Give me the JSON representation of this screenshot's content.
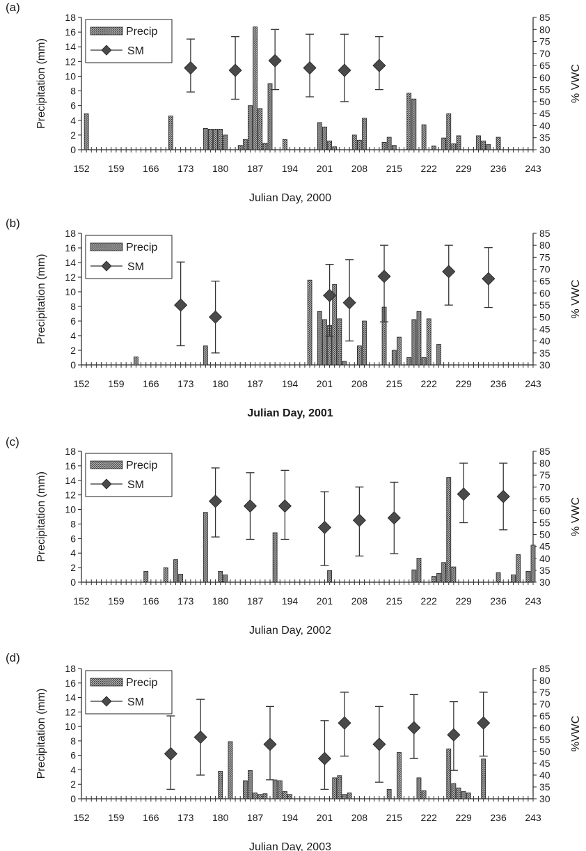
{
  "chart_data": [
    {
      "type": "bar",
      "panel": "(a)",
      "xlabel": "Julian Day, 2000",
      "ylabel": "Precipitation (mm)",
      "y2label": "% VWC",
      "xlim": [
        152,
        243
      ],
      "ylim": [
        0,
        18
      ],
      "y2lim": [
        30,
        85
      ],
      "xticks": [
        "152",
        "159",
        "166",
        "173",
        "180",
        "187",
        "194",
        "201",
        "208",
        "215",
        "222",
        "229",
        "236",
        "243"
      ],
      "yticks": [
        "0",
        "2",
        "4",
        "6",
        "8",
        "10",
        "12",
        "14",
        "16",
        "18"
      ],
      "y2ticks": [
        "30",
        "35",
        "40",
        "45",
        "50",
        "55",
        "60",
        "65",
        "70",
        "75",
        "80",
        "85"
      ],
      "legend": [
        "Precip",
        "SM"
      ],
      "legend_position": "top-left",
      "series": [
        {
          "name": "Precip",
          "type": "bar",
          "axis": "left",
          "x": [
            153,
            170,
            177,
            178,
            179,
            180,
            181,
            184,
            185,
            186,
            187,
            188,
            189,
            190,
            193,
            200,
            201,
            202,
            203,
            207,
            208,
            209,
            213,
            214,
            215,
            218,
            219,
            221,
            223,
            225,
            226,
            227,
            228,
            232,
            233,
            234,
            236
          ],
          "y": [
            4.9,
            4.6,
            2.9,
            2.8,
            2.8,
            2.8,
            2.0,
            0.6,
            1.4,
            6.0,
            16.7,
            5.6,
            0.9,
            9.0,
            1.4,
            3.7,
            3.1,
            1.2,
            0.4,
            2.0,
            1.3,
            4.3,
            1.0,
            1.7,
            0.6,
            7.7,
            6.9,
            3.4,
            0.5,
            1.6,
            4.9,
            0.8,
            1.9,
            1.9,
            1.2,
            0.7,
            1.7
          ]
        },
        {
          "name": "SM",
          "type": "scatter",
          "axis": "right",
          "x": [
            174,
            183,
            191,
            198,
            205,
            212
          ],
          "y": [
            64,
            63,
            67,
            64,
            63,
            65
          ],
          "error": [
            [
              54,
              76
            ],
            [
              51,
              77
            ],
            [
              55,
              80
            ],
            [
              52,
              78
            ],
            [
              50,
              78
            ],
            [
              55,
              77
            ]
          ]
        }
      ]
    },
    {
      "type": "bar",
      "panel": "(b)",
      "xlabel": "Julian Day, 2001",
      "ylabel": "Precipitation (mm)",
      "y2label": "% VWC",
      "xlim": [
        152,
        243
      ],
      "ylim": [
        0,
        18
      ],
      "y2lim": [
        30,
        85
      ],
      "xticks": [
        "152",
        "159",
        "166",
        "173",
        "180",
        "187",
        "194",
        "201",
        "208",
        "215",
        "222",
        "229",
        "236",
        "243"
      ],
      "yticks": [
        "0",
        "2",
        "4",
        "6",
        "8",
        "10",
        "12",
        "14",
        "16",
        "18"
      ],
      "y2ticks": [
        "30",
        "35",
        "40",
        "45",
        "50",
        "55",
        "60",
        "65",
        "70",
        "75",
        "80",
        "85"
      ],
      "legend": [
        "Precip",
        "SM"
      ],
      "legend_position": "top-left",
      "series": [
        {
          "name": "Precip",
          "type": "bar",
          "axis": "left",
          "x": [
            163,
            177,
            198,
            200,
            201,
            202,
            203,
            204,
            205,
            208,
            209,
            213,
            215,
            216,
            218,
            219,
            220,
            221,
            222,
            224
          ],
          "y": [
            1.1,
            2.6,
            11.6,
            7.3,
            6.2,
            5.4,
            11.0,
            6.3,
            0.5,
            2.6,
            6.0,
            7.9,
            2.0,
            3.8,
            1.0,
            6.2,
            7.3,
            1.0,
            6.3,
            2.8
          ]
        },
        {
          "name": "SM",
          "type": "scatter",
          "axis": "right",
          "x": [
            172,
            179,
            202,
            206,
            213,
            226,
            234
          ],
          "y": [
            55,
            50,
            59,
            56,
            67,
            69,
            66
          ],
          "error": [
            [
              38,
              73
            ],
            [
              35,
              65
            ],
            [
              42,
              72
            ],
            [
              40,
              74
            ],
            [
              48,
              80
            ],
            [
              55,
              80
            ],
            [
              54,
              79
            ]
          ]
        }
      ]
    },
    {
      "type": "bar",
      "panel": "(c)",
      "xlabel": "Julian Day, 2002",
      "ylabel": "Precipitation (mm)",
      "y2label": "% VWC",
      "xlim": [
        152,
        243
      ],
      "ylim": [
        0,
        18
      ],
      "y2lim": [
        30,
        85
      ],
      "xticks": [
        "152",
        "159",
        "166",
        "173",
        "180",
        "187",
        "194",
        "201",
        "208",
        "215",
        "222",
        "229",
        "236",
        "243"
      ],
      "yticks": [
        "0",
        "2",
        "4",
        "6",
        "8",
        "10",
        "12",
        "14",
        "16",
        "18"
      ],
      "y2ticks": [
        "30",
        "35",
        "40",
        "45",
        "50",
        "55",
        "60",
        "65",
        "70",
        "75",
        "80",
        "85"
      ],
      "legend": [
        "Precip",
        "SM"
      ],
      "legend_position": "top-left",
      "series": [
        {
          "name": "Precip",
          "type": "bar",
          "axis": "left",
          "x": [
            165,
            169,
            171,
            172,
            177,
            180,
            181,
            191,
            202,
            219,
            220,
            223,
            224,
            225,
            226,
            227,
            236,
            239,
            240,
            242,
            243
          ],
          "y": [
            1.5,
            2.0,
            3.1,
            1.1,
            9.6,
            1.5,
            1.0,
            6.8,
            1.6,
            1.7,
            3.3,
            0.8,
            1.2,
            2.7,
            14.4,
            2.1,
            1.3,
            1.0,
            3.8,
            1.5,
            5.1
          ]
        },
        {
          "name": "SM",
          "type": "scatter",
          "axis": "right",
          "x": [
            179,
            186,
            193,
            201,
            208,
            215,
            229,
            237
          ],
          "y": [
            64,
            62,
            62,
            53,
            56,
            57,
            67,
            66
          ],
          "error": [
            [
              49,
              78
            ],
            [
              48,
              76
            ],
            [
              48,
              77
            ],
            [
              37,
              68
            ],
            [
              41,
              70
            ],
            [
              42,
              72
            ],
            [
              55,
              80
            ],
            [
              52,
              80
            ]
          ]
        }
      ]
    },
    {
      "type": "bar",
      "panel": "(d)",
      "xlabel": "Julian Day, 2003",
      "ylabel": "Precipitation (mm)",
      "y2label": "%VWC",
      "xlim": [
        152,
        243
      ],
      "ylim": [
        0,
        18
      ],
      "y2lim": [
        30,
        85
      ],
      "xticks": [
        "152",
        "159",
        "166",
        "173",
        "180",
        "187",
        "194",
        "201",
        "208",
        "215",
        "222",
        "229",
        "236",
        "243"
      ],
      "yticks": [
        "0",
        "2",
        "4",
        "6",
        "8",
        "10",
        "12",
        "14",
        "16",
        "18"
      ],
      "y2ticks": [
        "30",
        "35",
        "40",
        "45",
        "50",
        "55",
        "60",
        "65",
        "70",
        "75",
        "80",
        "85"
      ],
      "legend": [
        "Precip",
        "SM"
      ],
      "legend_position": "top-left",
      "series": [
        {
          "name": "Precip",
          "type": "bar",
          "axis": "left",
          "x": [
            180,
            182,
            185,
            186,
            187,
            188,
            189,
            191,
            192,
            193,
            194,
            203,
            204,
            205,
            206,
            214,
            216,
            220,
            221,
            226,
            227,
            228,
            229,
            230,
            233
          ],
          "y": [
            3.8,
            7.9,
            2.5,
            3.9,
            0.8,
            0.6,
            0.7,
            2.6,
            2.5,
            1.0,
            0.6,
            2.9,
            3.2,
            0.6,
            0.8,
            1.3,
            6.4,
            2.9,
            1.1,
            6.9,
            2.1,
            1.5,
            1.0,
            0.8,
            5.5
          ]
        },
        {
          "name": "SM",
          "type": "scatter",
          "axis": "right",
          "x": [
            170,
            176,
            190,
            201,
            205,
            212,
            219,
            227,
            233
          ],
          "y": [
            49,
            56,
            53,
            47,
            62,
            53,
            60,
            57,
            62
          ],
          "error": [
            [
              34,
              65
            ],
            [
              40,
              72
            ],
            [
              38,
              69
            ],
            [
              34,
              63
            ],
            [
              48,
              75
            ],
            [
              37,
              69
            ],
            [
              47,
              74
            ],
            [
              42,
              71
            ],
            [
              48,
              75
            ]
          ]
        }
      ]
    }
  ]
}
